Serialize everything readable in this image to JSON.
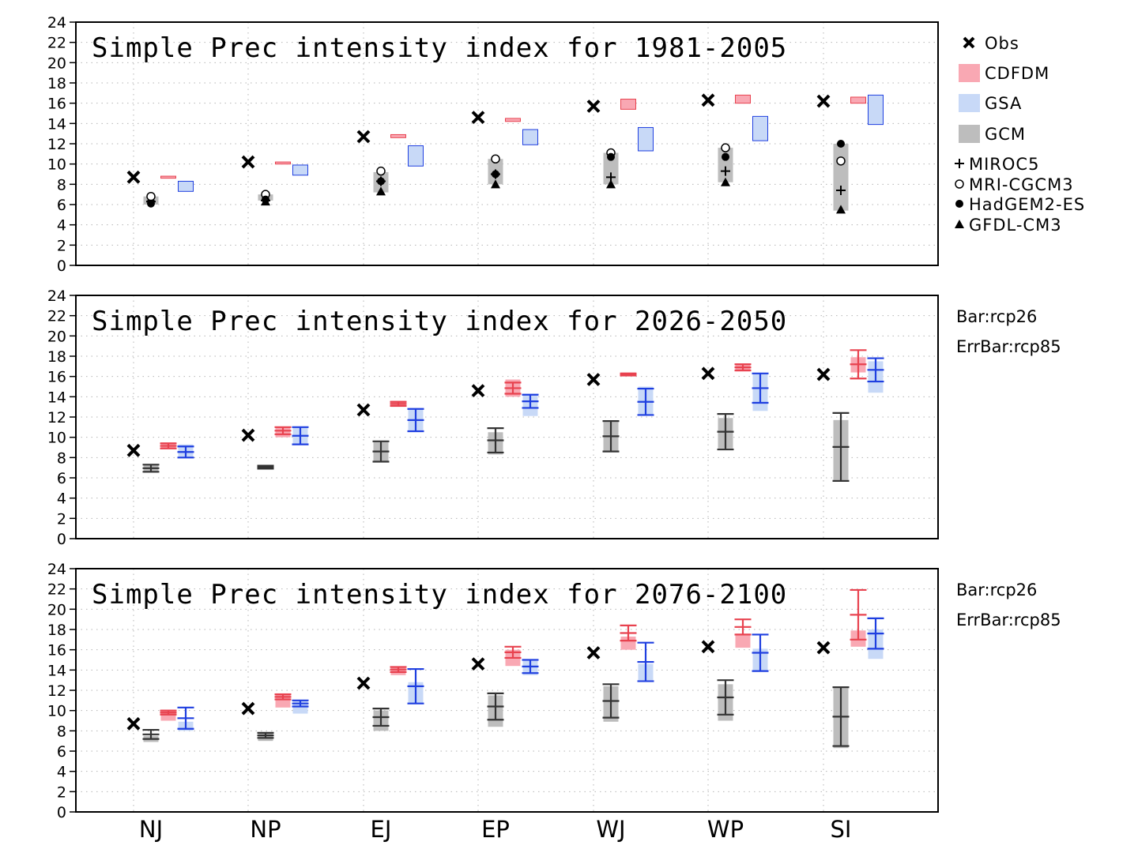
{
  "chart_data": {
    "type": "bar",
    "categories": [
      "NJ",
      "NP",
      "EJ",
      "EP",
      "WJ",
      "WP",
      "SI"
    ],
    "ylim": [
      0,
      24
    ],
    "yticks": [
      0,
      2,
      4,
      6,
      8,
      10,
      12,
      14,
      16,
      18,
      20,
      22,
      24
    ],
    "grid": true,
    "obs": [
      8.7,
      10.2,
      12.7,
      14.6,
      15.7,
      16.3,
      16.2
    ],
    "colors": {
      "obs": "#000000",
      "cdfdm_fill": "#f9a8b3",
      "cdfdm_edge": "#e8424f",
      "gsa_fill": "#c8d9f7",
      "gsa_edge": "#1f3fe0",
      "gcm_fill": "#bdbdbd",
      "gcm_edge": "#333333"
    },
    "legend": {
      "obs": "Obs",
      "cdfdm": "CDFDM",
      "gsa": "GSA",
      "gcm": "GCM",
      "models": [
        "MIROC5",
        "MRI-CGCM3",
        "HadGEM2-ES",
        "GFDL-CM3"
      ]
    },
    "panels": [
      {
        "title": "Simple Prec intensity index for 1981-2005",
        "cdfdm": [
          [
            8.6,
            8.8
          ],
          [
            10.0,
            10.2
          ],
          [
            12.6,
            12.9
          ],
          [
            14.2,
            14.5
          ],
          [
            15.4,
            16.4
          ],
          [
            16.0,
            16.8
          ],
          [
            16.0,
            16.6
          ]
        ],
        "gsa": [
          [
            7.3,
            8.3
          ],
          [
            8.9,
            9.9
          ],
          [
            9.8,
            11.8
          ],
          [
            11.9,
            13.4
          ],
          [
            11.3,
            13.6
          ],
          [
            12.3,
            14.7
          ],
          [
            13.9,
            16.8
          ]
        ],
        "gcm": [
          [
            6.0,
            6.8
          ],
          [
            6.4,
            7.0
          ],
          [
            7.2,
            9.2
          ],
          [
            8.0,
            10.5
          ],
          [
            8.0,
            11.1
          ],
          [
            8.2,
            11.6
          ],
          [
            5.4,
            12.0
          ]
        ],
        "models": {
          "MIROC5": [
            6.3,
            6.4,
            8.3,
            9.0,
            8.7,
            9.3,
            7.4
          ],
          "MRI-CGCM3": [
            6.8,
            7.0,
            9.3,
            10.5,
            11.1,
            11.6,
            10.3
          ],
          "HadGEM2-ES": [
            6.1,
            6.5,
            8.3,
            9.0,
            10.7,
            10.7,
            12.0
          ],
          "GFDL-CM3": [
            6.6,
            6.3,
            7.3,
            8.0,
            8.0,
            8.2,
            5.5
          ]
        }
      },
      {
        "title": "Simple Prec intensity index for 2026-2050",
        "side_labels": [
          "Bar:rcp26",
          "ErrBar:rcp85"
        ],
        "cdfdm_bar": [
          [
            8.9,
            9.5
          ],
          [
            10.0,
            11.0
          ],
          [
            13.0,
            13.6
          ],
          [
            14.0,
            15.7
          ],
          [
            16.0,
            16.4
          ],
          [
            16.5,
            17.3
          ],
          [
            16.4,
            17.9
          ]
        ],
        "cdfdm_err": [
          [
            8.9,
            9.4
          ],
          [
            10.3,
            11.0
          ],
          [
            13.1,
            13.5
          ],
          [
            14.3,
            15.4
          ],
          [
            16.1,
            16.3
          ],
          [
            16.6,
            17.2
          ],
          [
            15.8,
            18.6
          ]
        ],
        "gsa_bar": [
          [
            8.0,
            9.3
          ],
          [
            9.3,
            11.0
          ],
          [
            10.7,
            12.7
          ],
          [
            12.1,
            14.3
          ],
          [
            12.2,
            15.0
          ],
          [
            12.6,
            16.3
          ],
          [
            14.4,
            17.5
          ]
        ],
        "gsa_err": [
          [
            8.0,
            9.1
          ],
          [
            9.3,
            11.0
          ],
          [
            10.6,
            12.8
          ],
          [
            12.9,
            14.2
          ],
          [
            12.2,
            14.8
          ],
          [
            13.4,
            16.3
          ],
          [
            15.5,
            17.8
          ]
        ],
        "gcm_bar": [
          [
            6.5,
            7.3
          ],
          [
            6.9,
            7.2
          ],
          [
            7.6,
            9.5
          ],
          [
            8.3,
            10.5
          ],
          [
            8.6,
            11.5
          ],
          [
            8.9,
            11.9
          ],
          [
            5.8,
            11.7
          ]
        ],
        "gcm_err": [
          [
            6.6,
            7.3
          ],
          [
            6.9,
            7.2
          ],
          [
            7.6,
            9.6
          ],
          [
            8.5,
            10.9
          ],
          [
            8.6,
            11.6
          ],
          [
            8.8,
            12.3
          ],
          [
            5.7,
            12.4
          ]
        ]
      },
      {
        "title": "Simple Prec intensity index for 2076-2100",
        "side_labels": [
          "Bar:rcp26",
          "ErrBar:rcp85"
        ],
        "cdfdm_bar": [
          [
            9.0,
            10.1
          ],
          [
            10.3,
            11.7
          ],
          [
            13.5,
            14.3
          ],
          [
            14.4,
            16.0
          ],
          [
            16.0,
            17.3
          ],
          [
            16.2,
            17.6
          ],
          [
            16.3,
            17.9
          ]
        ],
        "cdfdm_err": [
          [
            9.6,
            10.0
          ],
          [
            11.1,
            11.6
          ],
          [
            13.8,
            14.3
          ],
          [
            15.2,
            16.3
          ],
          [
            16.9,
            18.4
          ],
          [
            17.5,
            19.0
          ],
          [
            17.0,
            21.9
          ]
        ],
        "gsa_bar": [
          [
            8.0,
            8.9
          ],
          [
            9.7,
            11.0
          ],
          [
            10.7,
            12.8
          ],
          [
            13.5,
            14.9
          ],
          [
            13.0,
            14.6
          ],
          [
            13.9,
            16.1
          ],
          [
            15.1,
            18.0
          ]
        ],
        "gsa_err": [
          [
            8.2,
            10.3
          ],
          [
            10.4,
            11.0
          ],
          [
            10.7,
            14.1
          ],
          [
            13.7,
            15.0
          ],
          [
            12.9,
            16.7
          ],
          [
            13.9,
            17.5
          ],
          [
            16.1,
            19.1
          ]
        ],
        "gcm_bar": [
          [
            6.9,
            7.5
          ],
          [
            7.0,
            7.8
          ],
          [
            8.0,
            10.0
          ],
          [
            8.4,
            11.5
          ],
          [
            8.9,
            12.4
          ],
          [
            9.0,
            12.6
          ],
          [
            6.3,
            12.2
          ]
        ],
        "gcm_err": [
          [
            7.2,
            8.1
          ],
          [
            7.3,
            7.8
          ],
          [
            8.5,
            10.2
          ],
          [
            9.1,
            11.7
          ],
          [
            9.3,
            12.6
          ],
          [
            9.6,
            13.0
          ],
          [
            6.5,
            12.3
          ]
        ]
      }
    ]
  }
}
